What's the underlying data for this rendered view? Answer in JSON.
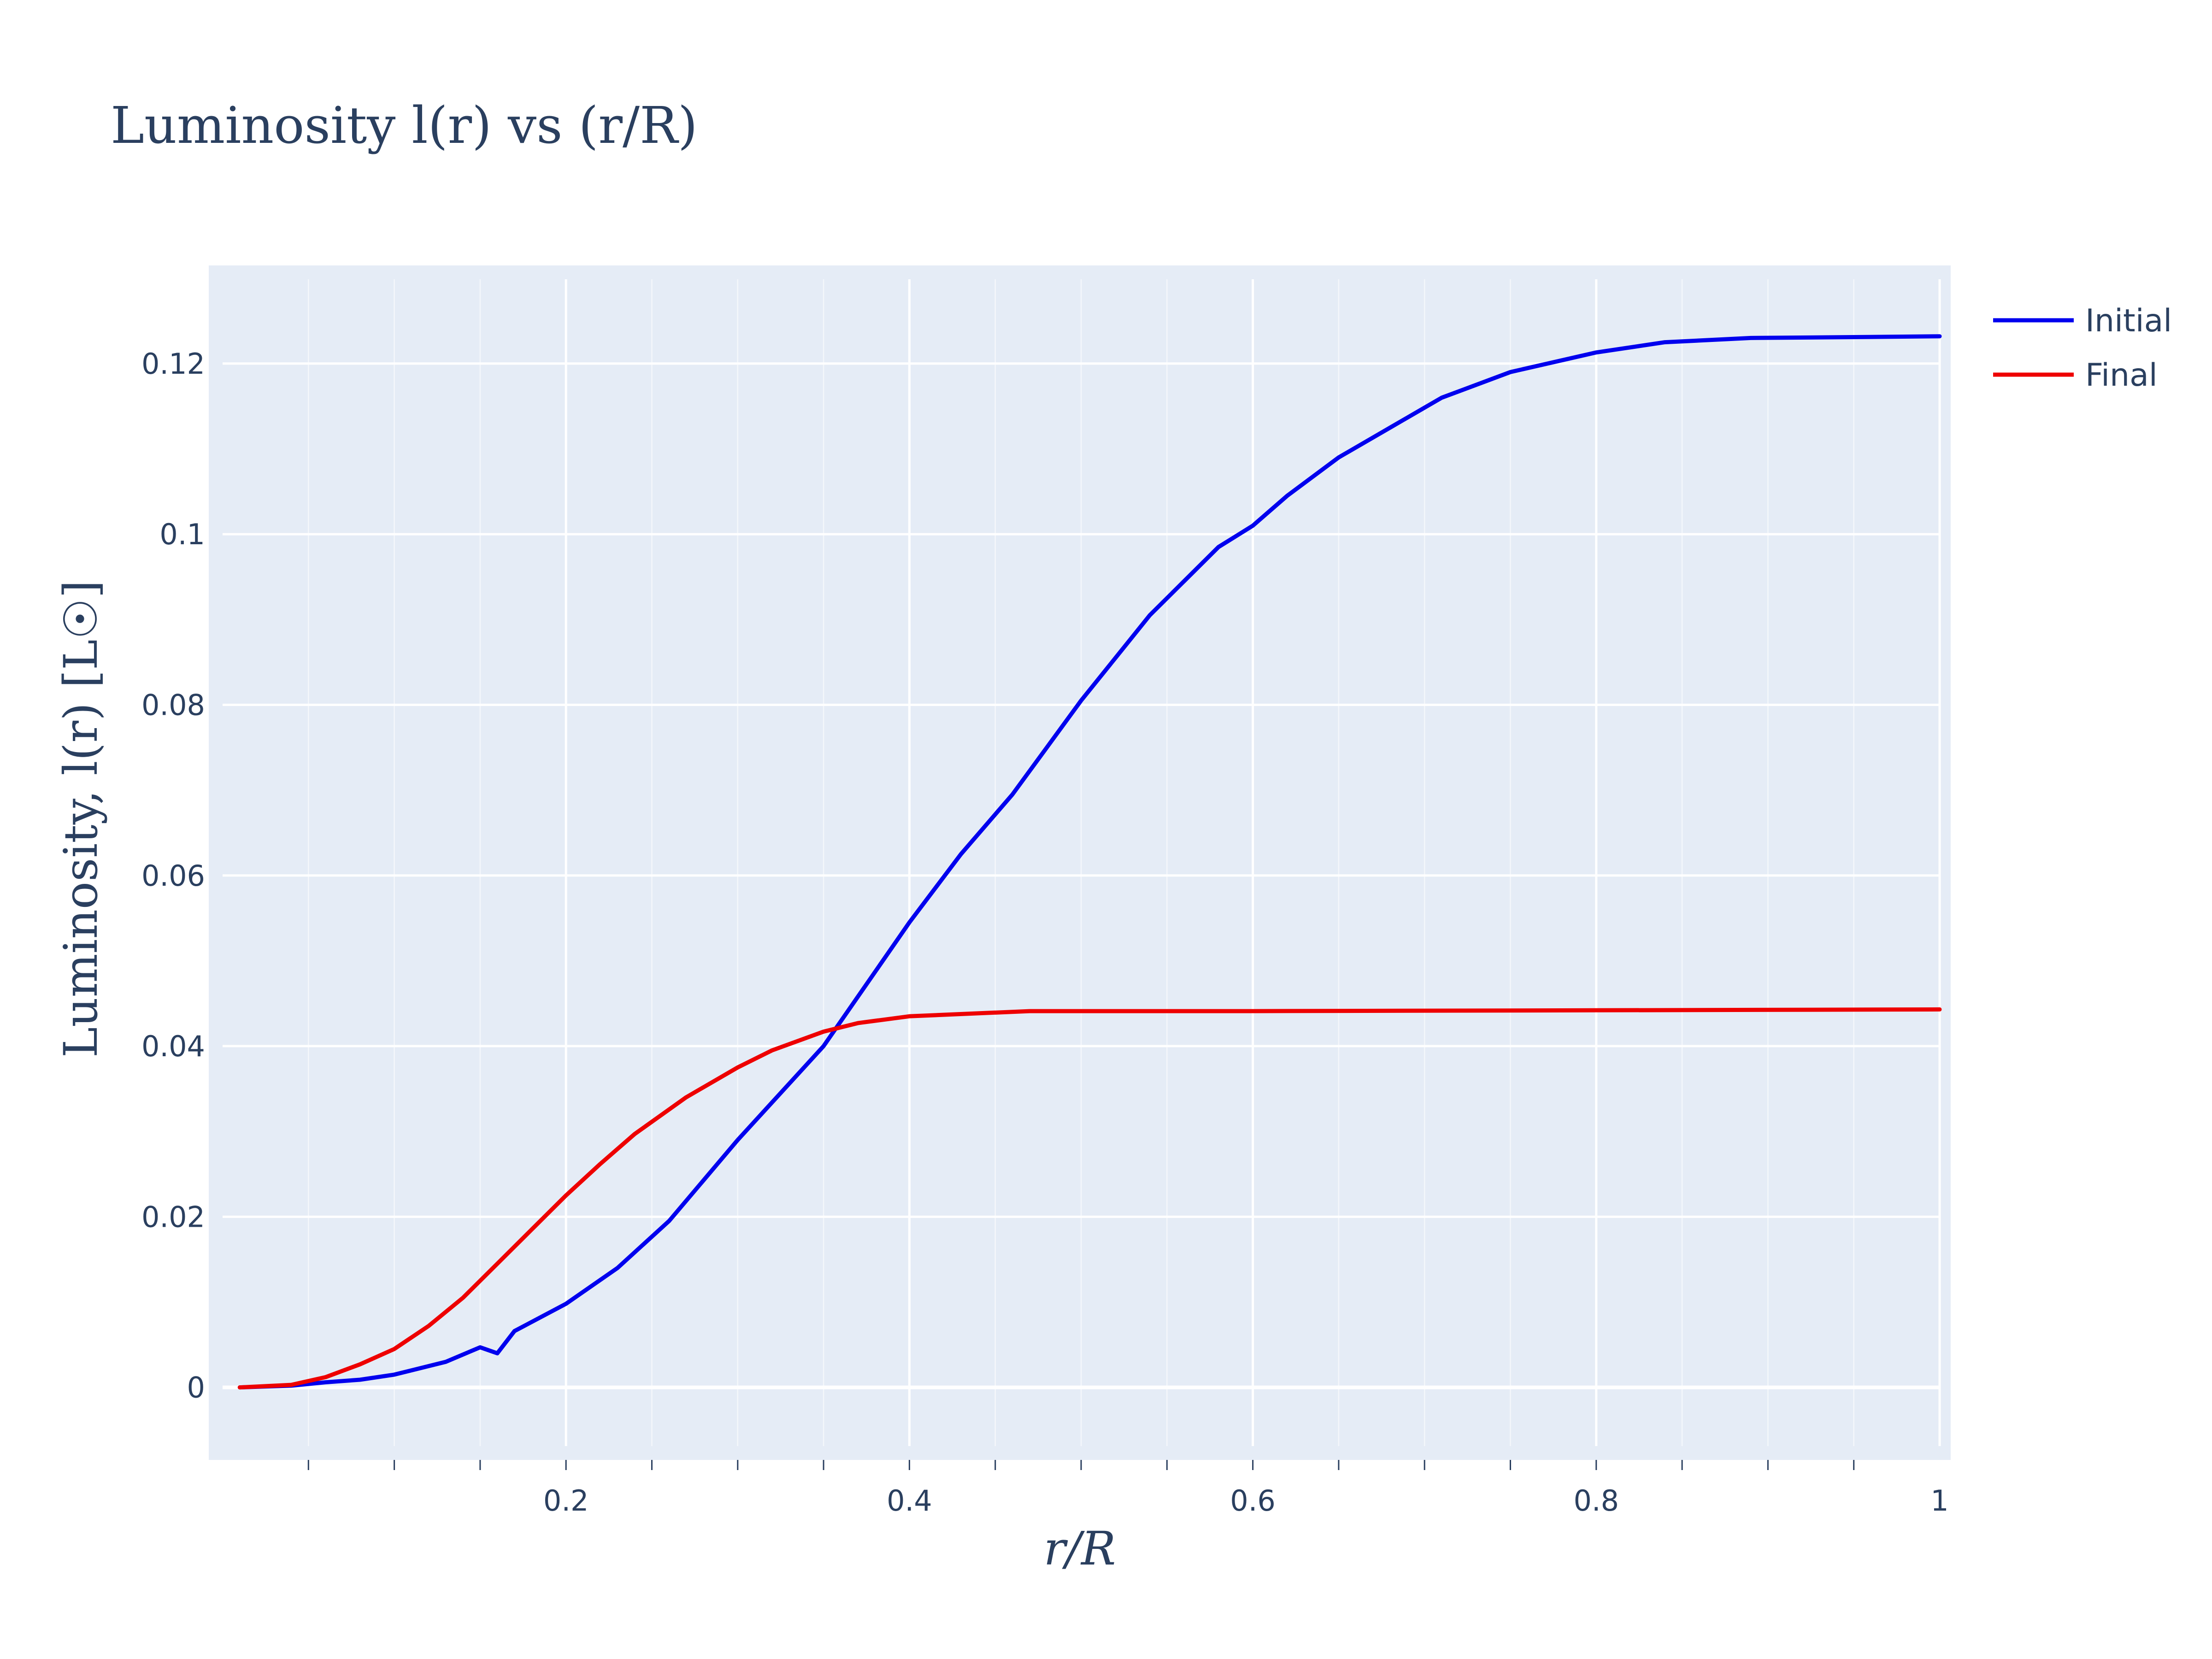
{
  "chart_data": {
    "type": "line",
    "title": "Luminosity l(r) vs (r/R)",
    "xlabel": "r/R",
    "ylabel": "Luminosity, l(r) [L☉]",
    "xlim": [
      0.0,
      1.0
    ],
    "ylim": [
      -0.0085,
      0.1315
    ],
    "x_ticks": [
      0.2,
      0.4,
      0.6,
      0.8,
      1.0
    ],
    "x_tick_labels": [
      "0.2",
      "0.4",
      "0.6",
      "0.8",
      "1"
    ],
    "y_ticks": [
      0,
      0.02,
      0.04,
      0.06,
      0.08,
      0.1,
      0.12
    ],
    "y_tick_labels": [
      "0",
      "0.02",
      "0.04",
      "0.06",
      "0.08",
      "0.1",
      "0.12"
    ],
    "grid": true,
    "legend_position": "top-right",
    "series": [
      {
        "name": "Initial",
        "color": "#0000ee",
        "x": [
          0.01,
          0.04,
          0.06,
          0.08,
          0.1,
          0.13,
          0.15,
          0.16,
          0.17,
          0.2,
          0.23,
          0.26,
          0.3,
          0.35,
          0.4,
          0.43,
          0.46,
          0.48,
          0.5,
          0.52,
          0.54,
          0.56,
          0.58,
          0.6,
          0.62,
          0.65,
          0.68,
          0.71,
          0.75,
          0.8,
          0.84,
          0.89,
          0.95,
          1.0
        ],
        "y": [
          0.0,
          0.0002,
          0.0006,
          0.0009,
          0.0015,
          0.003,
          0.0047,
          0.004,
          0.0066,
          0.0098,
          0.014,
          0.0195,
          0.029,
          0.04,
          0.0545,
          0.0625,
          0.0695,
          0.075,
          0.0805,
          0.0855,
          0.0905,
          0.0945,
          0.0985,
          0.101,
          0.1045,
          0.109,
          0.1125,
          0.116,
          0.119,
          0.1213,
          0.1225,
          0.123,
          0.1231,
          0.1232
        ]
      },
      {
        "name": "Final",
        "color": "#ee0000",
        "x": [
          0.01,
          0.04,
          0.06,
          0.08,
          0.1,
          0.12,
          0.14,
          0.16,
          0.18,
          0.2,
          0.22,
          0.24,
          0.27,
          0.3,
          0.32,
          0.35,
          0.37,
          0.4,
          0.47,
          0.6,
          0.8,
          1.0
        ],
        "y": [
          0.0,
          0.0003,
          0.0012,
          0.0027,
          0.0045,
          0.0072,
          0.0105,
          0.0145,
          0.0185,
          0.0225,
          0.0262,
          0.0297,
          0.034,
          0.0375,
          0.0395,
          0.0417,
          0.0427,
          0.0435,
          0.0441,
          0.0441,
          0.0442,
          0.0443
        ]
      }
    ]
  }
}
